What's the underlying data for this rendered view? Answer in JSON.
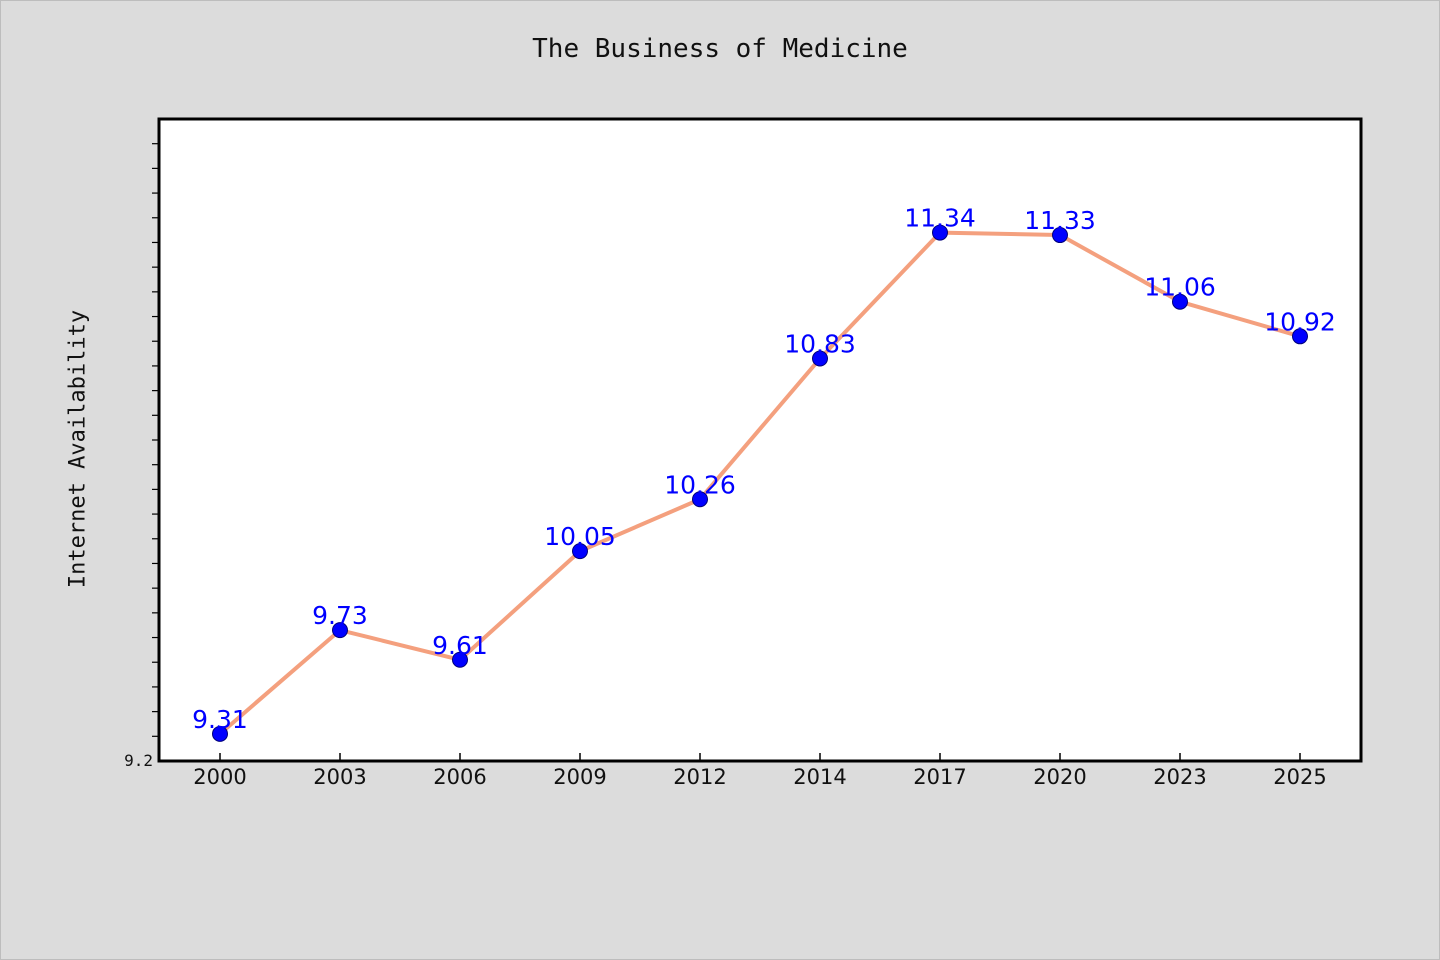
{
  "chart_data": {
    "type": "line",
    "title": "The Business of Medicine",
    "xlabel": "",
    "ylabel": "Internet Availability",
    "categories": [
      "2000",
      "2003",
      "2006",
      "2009",
      "2012",
      "2014",
      "2017",
      "2020",
      "2023",
      "2025"
    ],
    "series": [
      {
        "values": [
          9.31,
          9.73,
          9.61,
          10.05,
          10.26,
          10.83,
          11.34,
          11.33,
          11.06,
          10.92
        ],
        "labels": [
          "9.31",
          "9.73",
          "9.61",
          "10.05",
          "10.26",
          "10.83",
          "11.34",
          "11.33",
          "11.06",
          "10.92"
        ]
      }
    ],
    "y_min_label": "9.2",
    "ylim": [
      9.2,
      11.8
    ],
    "grid": false,
    "colors": {
      "background": "#dcdcdc",
      "plot_background": "#ffffff",
      "line": "#f4a07e",
      "marker": "#0000ff",
      "data_label": "#0000ff"
    }
  }
}
